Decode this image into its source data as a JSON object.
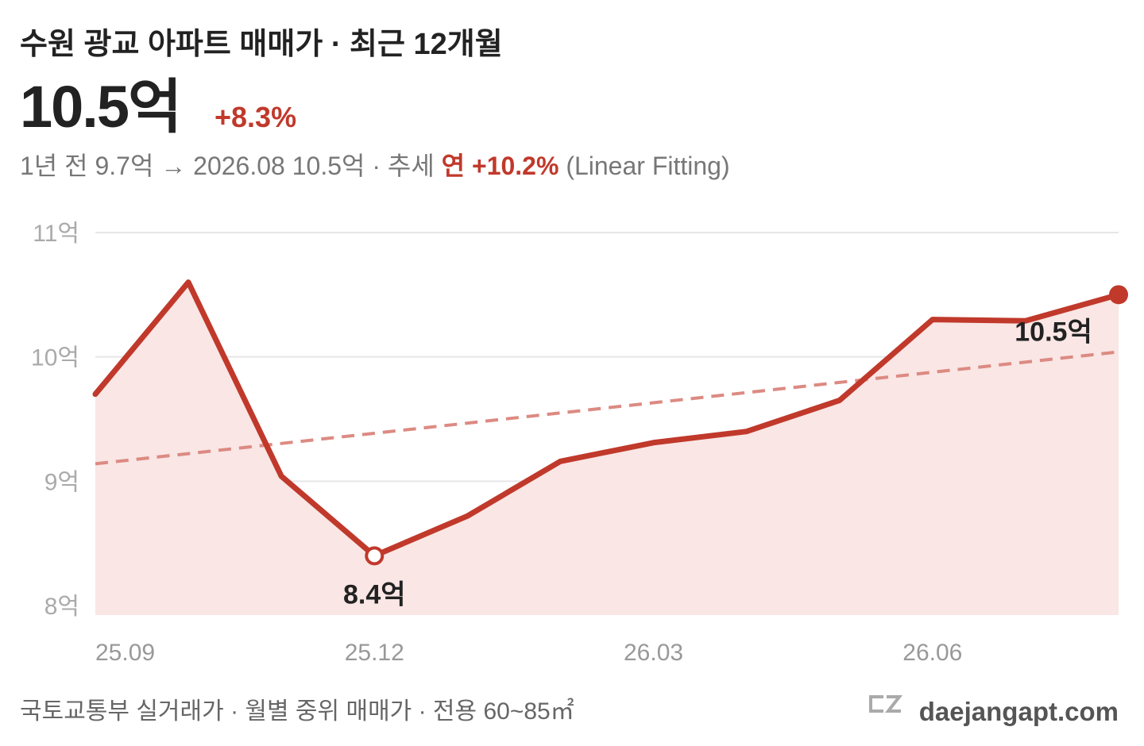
{
  "header": {
    "title": "수원 광교 아파트 매매가 · 최근 12개월",
    "price": "10.5억",
    "change": "+8.3%",
    "subtitle": [
      "1년 전 9.7억 → 2026.08 10.5억 · 추세 ",
      "연",
      " +10.2%",
      " (Linear Fitting)"
    ]
  },
  "chart_data": {
    "type": "line",
    "categories": [
      "25.09",
      null,
      null,
      "25.12",
      null,
      null,
      "26.03",
      null,
      null,
      "26.06",
      null,
      null
    ],
    "series": [
      {
        "color": "#c0392b",
        "fill": "#f9e6e5",
        "values": [
          9.7,
          10.6,
          9.04,
          8.4,
          8.72,
          9.16,
          9.31,
          9.4,
          9.65,
          10.3,
          10.29,
          10.5
        ],
        "value_labels": [
          null,
          null,
          null,
          "8.4억",
          null,
          null,
          null,
          null,
          null,
          null,
          null,
          "10.5억"
        ]
      }
    ],
    "trend": [
      9.14,
      10.04
    ],
    "trend_color": "#dc8a82",
    "ylim": [
      8,
      11
    ],
    "yticks": [
      {
        "value": 8,
        "label": "8억"
      },
      {
        "value": 9,
        "label": "9억"
      },
      {
        "value": 10,
        "label": "10억"
      },
      {
        "value": 11,
        "label": "11억"
      }
    ],
    "grid": true
  },
  "footer": {
    "source": "국토교통부 실거래가 · 월별 중위 매매가 · 전용 60~85㎡",
    "brand": "daejangapt.com"
  }
}
